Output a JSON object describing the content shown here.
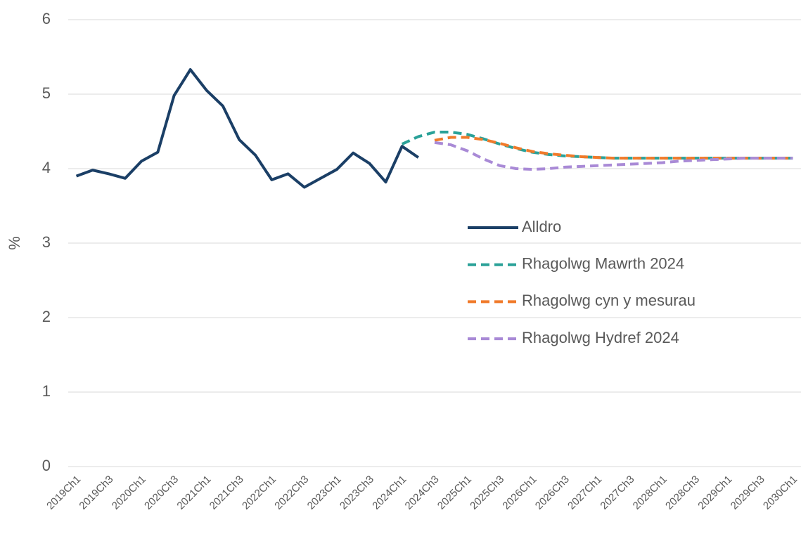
{
  "chart_data": {
    "type": "line",
    "y_label": "%",
    "categories": [
      "2019Ch1",
      null,
      "2019Ch3",
      null,
      "2020Ch1",
      null,
      "2020Ch3",
      null,
      "2021Ch1",
      null,
      "2021Ch3",
      null,
      "2022Ch1",
      null,
      "2022Ch3",
      null,
      "2023Ch1",
      null,
      "2023Ch3",
      null,
      "2024Ch1",
      null,
      "2024Ch3",
      null,
      "2025Ch1",
      null,
      "2025Ch3",
      null,
      "2026Ch1",
      null,
      "2026Ch3",
      null,
      "2027Ch1",
      null,
      "2027Ch3",
      null,
      "2028Ch1",
      null,
      "2028Ch3",
      null,
      "2029Ch1",
      null,
      "2029Ch3",
      null,
      "2030Ch1"
    ],
    "series": [
      {
        "name": "Alldro",
        "color": "#1b3f66",
        "dashed": false,
        "values": [
          3.9,
          3.98,
          3.93,
          3.87,
          4.1,
          4.22,
          4.98,
          5.33,
          5.05,
          4.84,
          4.39,
          4.18,
          3.85,
          3.93,
          3.75,
          3.87,
          3.99,
          4.21,
          4.07,
          3.82,
          4.3,
          4.15,
          null,
          null,
          null,
          null,
          null,
          null,
          null,
          null,
          null,
          null,
          null,
          null,
          null,
          null,
          null,
          null,
          null,
          null,
          null,
          null,
          null,
          null,
          null
        ]
      },
      {
        "name": "Rhagolwg Mawrth 2024",
        "color": "#2aa198",
        "dashed": true,
        "values": [
          null,
          null,
          null,
          null,
          null,
          null,
          null,
          null,
          null,
          null,
          null,
          null,
          null,
          null,
          null,
          null,
          null,
          null,
          null,
          null,
          4.33,
          4.43,
          4.49,
          4.49,
          4.46,
          4.4,
          4.33,
          4.27,
          4.22,
          4.19,
          4.17,
          4.16,
          4.15,
          4.14,
          4.14,
          4.14,
          4.14,
          4.14,
          4.14,
          4.14,
          4.14,
          4.14,
          4.14,
          4.14,
          4.14
        ]
      },
      {
        "name": "Rhagolwg cyn y mesurau",
        "color": "#f07a2a",
        "dashed": true,
        "values": [
          null,
          null,
          null,
          null,
          null,
          null,
          null,
          null,
          null,
          null,
          null,
          null,
          null,
          null,
          null,
          null,
          null,
          null,
          null,
          null,
          null,
          null,
          4.38,
          4.42,
          4.42,
          4.39,
          4.34,
          4.28,
          4.23,
          4.2,
          4.18,
          4.16,
          4.15,
          4.14,
          4.14,
          4.14,
          4.14,
          4.14,
          4.14,
          4.14,
          4.14,
          4.14,
          4.14,
          4.14,
          4.14
        ]
      },
      {
        "name": "Rhagolwg Hydref 2024",
        "color": "#a98ad6",
        "dashed": true,
        "values": [
          null,
          null,
          null,
          null,
          null,
          null,
          null,
          null,
          null,
          null,
          null,
          null,
          null,
          null,
          null,
          null,
          null,
          null,
          null,
          null,
          null,
          null,
          4.35,
          4.32,
          4.24,
          4.13,
          4.04,
          4.0,
          3.99,
          4.0,
          4.02,
          4.03,
          4.04,
          4.05,
          4.06,
          4.07,
          4.08,
          4.1,
          4.11,
          4.12,
          4.13,
          4.14,
          4.14,
          4.14,
          4.14
        ]
      }
    ],
    "ylim": [
      0,
      6
    ],
    "yticks": [
      0,
      1,
      2,
      3,
      4,
      5,
      6
    ],
    "grid": true
  }
}
